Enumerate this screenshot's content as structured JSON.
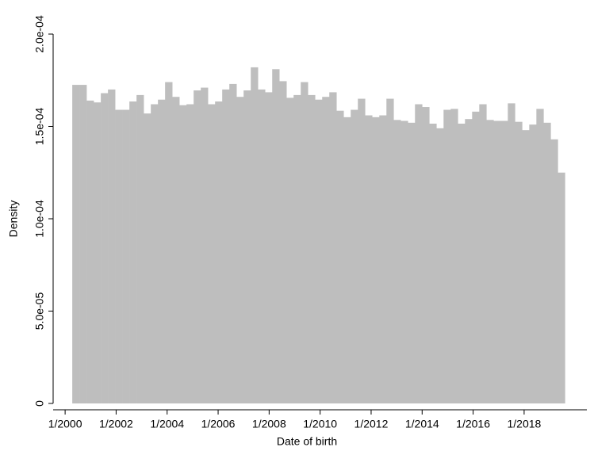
{
  "chart_data": {
    "type": "histogram",
    "x_label": "Date of birth",
    "y_label": "Density",
    "color": "#bebebe",
    "bins": [
      2000.28,
      2000.56,
      2000.84,
      2001.12,
      2001.4,
      2001.68,
      2001.96,
      2002.24,
      2002.52,
      2002.8,
      2003.08,
      2003.36,
      2003.64,
      2003.92,
      2004.2,
      2004.48,
      2004.76,
      2005.04,
      2005.32,
      2005.6,
      2005.88,
      2006.16,
      2006.44,
      2006.72,
      2007.0,
      2007.28,
      2007.56,
      2007.84,
      2008.12,
      2008.4,
      2008.68,
      2008.96,
      2009.24,
      2009.52,
      2009.8,
      2010.08,
      2010.36,
      2010.64,
      2010.92,
      2011.2,
      2011.48,
      2011.76,
      2012.04,
      2012.32,
      2012.6,
      2012.88,
      2013.16,
      2013.44,
      2013.72,
      2014.0,
      2014.28,
      2014.56,
      2014.84,
      2015.12,
      2015.4,
      2015.68,
      2015.96,
      2016.24,
      2016.52,
      2016.8,
      2017.08,
      2017.36,
      2017.64,
      2017.92,
      2018.2,
      2018.48,
      2018.76,
      2019.04,
      2019.32,
      2019.6
    ],
    "values": [
      0.0001725,
      0.0001725,
      0.000164,
      0.000163,
      0.000168,
      0.00017,
      0.000159,
      0.000159,
      0.0001635,
      0.000167,
      0.000157,
      0.000162,
      0.0001645,
      0.000174,
      0.000166,
      0.0001615,
      0.000162,
      0.0001695,
      0.000171,
      0.000162,
      0.0001635,
      0.00017,
      0.000173,
      0.000166,
      0.0001695,
      0.000182,
      0.00017,
      0.0001685,
      0.000181,
      0.0001745,
      0.0001655,
      0.000167,
      0.000174,
      0.000167,
      0.0001645,
      0.000166,
      0.0001685,
      0.0001585,
      0.000155,
      0.000159,
      0.000165,
      0.000156,
      0.000155,
      0.000156,
      0.000165,
      0.0001535,
      0.000153,
      0.000152,
      0.000162,
      0.0001605,
      0.0001515,
      0.000149,
      0.000159,
      0.0001595,
      0.0001515,
      0.000154,
      0.000158,
      0.000162,
      0.0001535,
      0.000153,
      0.000153,
      0.0001625,
      0.0001525,
      0.000148,
      0.000151,
      0.0001595,
      0.000152,
      0.000143,
      0.000125
    ],
    "xlim": [
      1999.53,
      2020.46
    ],
    "xticks": [
      {
        "value": 2000,
        "label": "1/2000"
      },
      {
        "value": 2002,
        "label": "1/2002"
      },
      {
        "value": 2004,
        "label": "1/2004"
      },
      {
        "value": 2006,
        "label": "1/2006"
      },
      {
        "value": 2008,
        "label": "1/2008"
      },
      {
        "value": 2010,
        "label": "1/2010"
      },
      {
        "value": 2012,
        "label": "1/2012"
      },
      {
        "value": 2014,
        "label": "1/2014"
      },
      {
        "value": 2016,
        "label": "1/2016"
      },
      {
        "value": 2018,
        "label": "1/2018"
      }
    ],
    "ylim": [
      0,
      0.0002
    ],
    "yticks": [
      0,
      {
        "value": 5e-05,
        "label": "5.0e-05"
      },
      {
        "value": 0.0001,
        "label": "1.0e-04"
      },
      {
        "value": 0.00015,
        "label": "1.5e-04"
      },
      {
        "value": 0.0002,
        "label": "2.0e-04"
      }
    ]
  }
}
